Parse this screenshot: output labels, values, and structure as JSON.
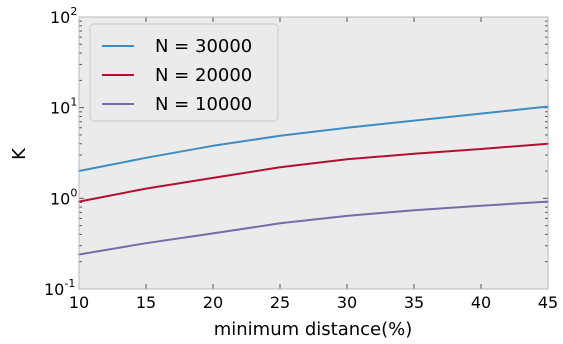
{
  "chart_data": {
    "type": "line",
    "title": "",
    "xlabel": "minimum distance(%)",
    "ylabel": "K",
    "xlim": [
      10,
      45
    ],
    "ylim": [
      0.1,
      100
    ],
    "yscale": "log",
    "grid": false,
    "legend_position": "top-left",
    "background_color": "#ebebeb",
    "x_ticks": [
      10,
      15,
      20,
      25,
      30,
      35,
      40,
      45
    ],
    "x_tick_labels": [
      "10",
      "15",
      "20",
      "25",
      "30",
      "35",
      "40",
      "45"
    ],
    "y_ticks": [
      0.1,
      1,
      10,
      100
    ],
    "y_tick_labels": [
      {
        "base": "10",
        "exp": "-1"
      },
      {
        "base": "10",
        "exp": "0"
      },
      {
        "base": "10",
        "exp": "1"
      },
      {
        "base": "10",
        "exp": "2"
      }
    ],
    "x": [
      10,
      15,
      20,
      25,
      30,
      35,
      40,
      45
    ],
    "series": [
      {
        "name": "N = 30000",
        "color": "#3e8cc1",
        "values": [
          2.0,
          2.8,
          3.8,
          4.9,
          6.0,
          7.2,
          8.6,
          10.3
        ]
      },
      {
        "name": "N = 20000",
        "color": "#b1102f",
        "values": [
          0.92,
          1.28,
          1.68,
          2.2,
          2.7,
          3.1,
          3.5,
          4.0
        ]
      },
      {
        "name": "N = 10000",
        "color": "#7b6aa8",
        "values": [
          0.24,
          0.32,
          0.41,
          0.53,
          0.64,
          0.74,
          0.83,
          0.92
        ]
      }
    ]
  }
}
